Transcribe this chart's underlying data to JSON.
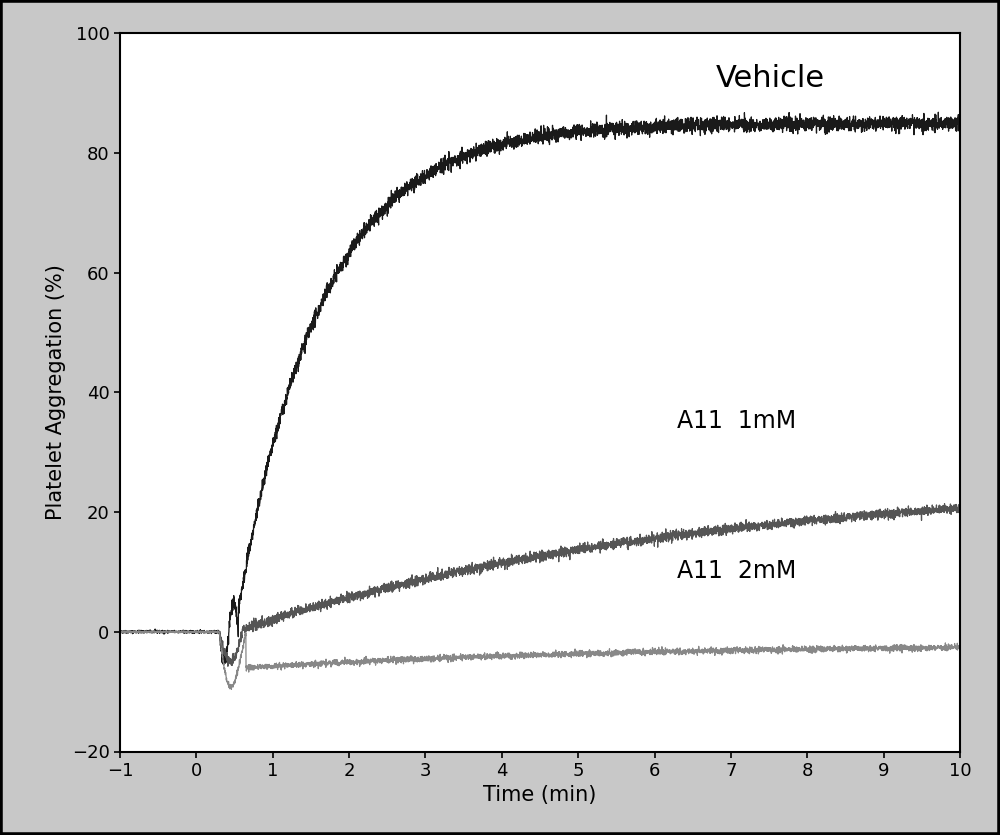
{
  "title": "",
  "xlabel": "Time (min)",
  "ylabel": "Platelet Aggregation (%)",
  "xlim": [
    -1,
    10
  ],
  "ylim": [
    -20,
    100
  ],
  "xticks": [
    -1,
    0,
    1,
    2,
    3,
    4,
    5,
    6,
    7,
    8,
    9,
    10
  ],
  "yticks": [
    -20,
    0,
    20,
    40,
    60,
    80,
    100
  ],
  "vehicle_label": "Vehicle",
  "a11_1mM_label": "A11  1mM",
  "a11_2mM_label": "A11  2mM",
  "vehicle_color": "#1a1a1a",
  "a11_1mM_color": "#555555",
  "a11_2mM_color": "#888888",
  "background_color": "#ffffff",
  "outer_bg_color": "#c8c8c8",
  "noise_scale_vehicle": 0.6,
  "noise_scale_1mM": 0.4,
  "noise_scale_2mM": 0.25
}
